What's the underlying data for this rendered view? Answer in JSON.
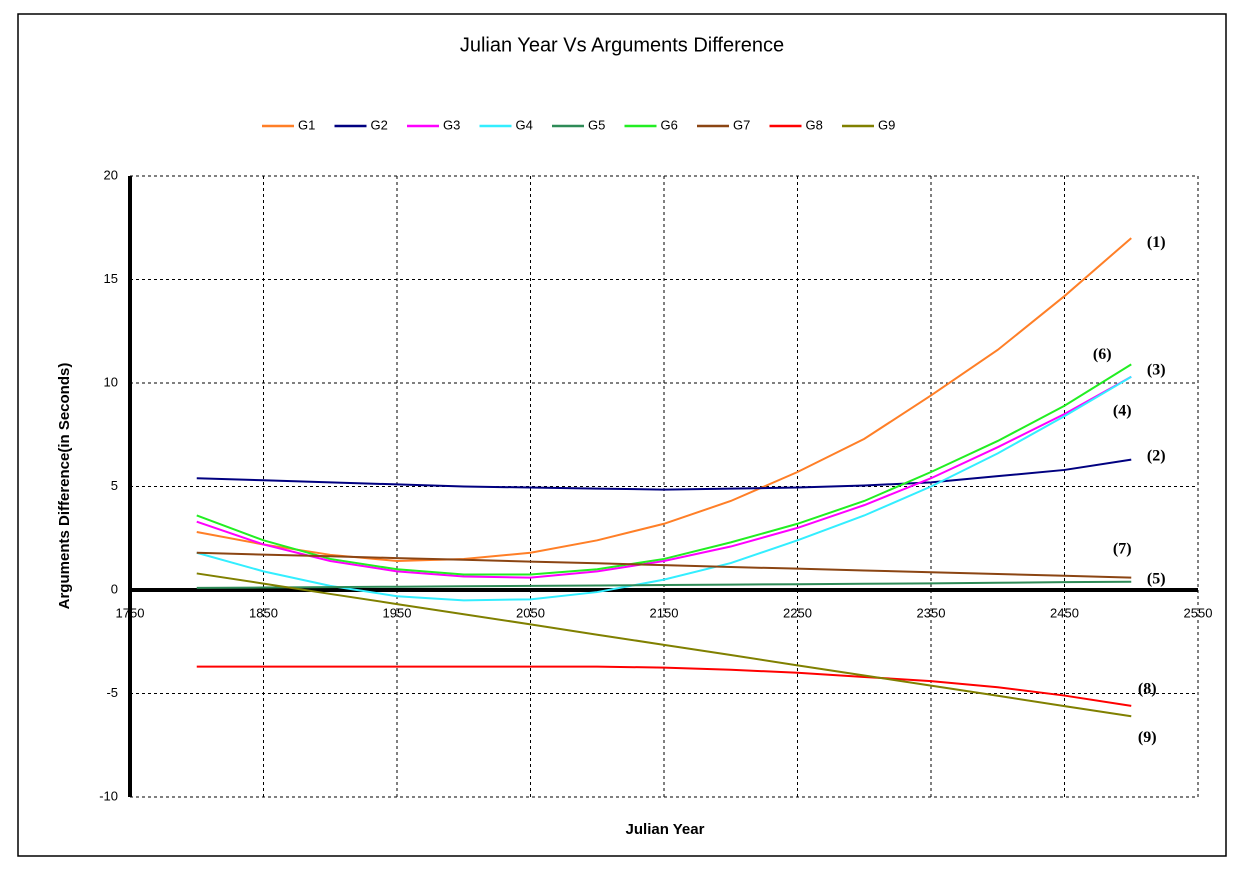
{
  "chart_data": {
    "type": "line",
    "title": "Julian Year Vs Arguments Difference",
    "x_label": "Julian Year",
    "y_label": "Arguments Difference(in Seconds)",
    "x": [
      1800,
      1850,
      1900,
      1950,
      2000,
      2050,
      2100,
      2150,
      2200,
      2250,
      2300,
      2350,
      2400,
      2450,
      2500
    ],
    "series": [
      {
        "name": "G1",
        "color": "#ff7f27",
        "values": [
          2.8,
          2.2,
          1.7,
          1.4,
          1.5,
          1.8,
          2.4,
          3.2,
          4.3,
          5.7,
          7.3,
          9.4,
          11.6,
          14.2,
          17.0
        ]
      },
      {
        "name": "G2",
        "color": "#000080",
        "values": [
          5.4,
          5.3,
          5.2,
          5.1,
          5.0,
          4.95,
          4.9,
          4.85,
          4.9,
          4.95,
          5.05,
          5.2,
          5.5,
          5.8,
          6.3
        ]
      },
      {
        "name": "G3",
        "color": "#ff00ff",
        "values": [
          3.3,
          2.2,
          1.4,
          0.9,
          0.65,
          0.6,
          0.9,
          1.4,
          2.1,
          3.0,
          4.1,
          5.4,
          6.9,
          8.5,
          10.3
        ]
      },
      {
        "name": "G4",
        "color": "#33eeff",
        "values": [
          1.8,
          0.9,
          0.2,
          -0.3,
          -0.5,
          -0.45,
          -0.1,
          0.5,
          1.3,
          2.4,
          3.6,
          5.0,
          6.6,
          8.4,
          10.3
        ]
      },
      {
        "name": "G5",
        "color": "#2e8b57",
        "values": [
          0.1,
          0.12,
          0.14,
          0.16,
          0.18,
          0.2,
          0.22,
          0.24,
          0.26,
          0.28,
          0.3,
          0.32,
          0.35,
          0.38,
          0.4
        ]
      },
      {
        "name": "G6",
        "color": "#22ee22",
        "values": [
          3.6,
          2.4,
          1.5,
          1.0,
          0.75,
          0.75,
          1.0,
          1.5,
          2.3,
          3.2,
          4.3,
          5.7,
          7.2,
          8.9,
          10.9
        ]
      },
      {
        "name": "G7",
        "color": "#8b4513",
        "values": [
          1.8,
          1.71,
          1.63,
          1.54,
          1.46,
          1.37,
          1.29,
          1.2,
          1.11,
          1.03,
          0.94,
          0.86,
          0.77,
          0.69,
          0.6
        ]
      },
      {
        "name": "G8",
        "color": "#ff0000",
        "values": [
          -3.7,
          -3.7,
          -3.7,
          -3.7,
          -3.7,
          -3.7,
          -3.7,
          -3.75,
          -3.85,
          -4.0,
          -4.2,
          -4.4,
          -4.7,
          -5.1,
          -5.6
        ]
      },
      {
        "name": "G9",
        "color": "#808000",
        "values": [
          0.8,
          0.31,
          -0.19,
          -0.68,
          -1.17,
          -1.66,
          -2.16,
          -2.65,
          -3.14,
          -3.64,
          -4.13,
          -4.62,
          -5.11,
          -5.61,
          -6.1
        ]
      }
    ],
    "annotations": [
      "(1)",
      "(2)",
      "(3)",
      "(4)",
      "(5)",
      "(6)",
      "(7)",
      "(8)",
      "(9)"
    ],
    "xlim": [
      1750,
      2550
    ],
    "xticks": [
      1750,
      1850,
      1950,
      2050,
      2150,
      2250,
      2350,
      2450,
      2550
    ],
    "ylim": [
      -10,
      20
    ],
    "yticks": [
      -10,
      -5,
      0,
      5,
      10,
      15,
      20
    ],
    "grid": true,
    "legend": "top"
  }
}
